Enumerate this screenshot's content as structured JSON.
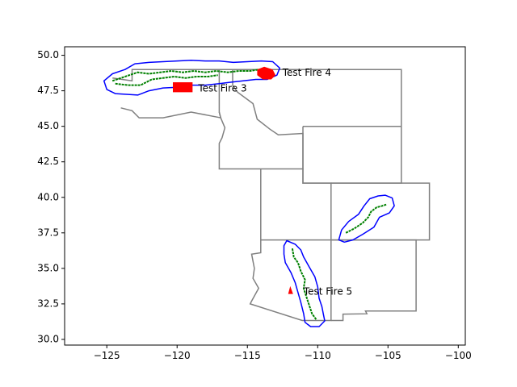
{
  "chart_data": {
    "type": "map",
    "title": "",
    "xlabel": "",
    "ylabel": "",
    "xlim": [
      -128,
      -99.5
    ],
    "ylim": [
      29.6,
      50.6
    ],
    "x_ticks": [
      -125,
      -120,
      -115,
      -110,
      -105,
      -100
    ],
    "y_ticks": [
      30.0,
      32.5,
      35.0,
      37.5,
      40.0,
      42.5,
      45.0,
      47.5,
      50.0
    ],
    "x_tick_labels": [
      "−125",
      "−120",
      "−115",
      "−110",
      "−105",
      "−100"
    ],
    "y_tick_labels": [
      "30.0",
      "32.5",
      "35.0",
      "37.5",
      "40.0",
      "42.5",
      "45.0",
      "47.5",
      "50.0"
    ],
    "grid": false,
    "colors": {
      "state_borders": "#808080",
      "fire_lines": "#008000",
      "buffers": "#0000ff",
      "fire_polygons": "#ff0000"
    },
    "state_borders": [
      [
        [
          -124.6,
          48.4
        ],
        [
          -123.2,
          48.2
        ],
        [
          -123.2,
          49.0
        ],
        [
          -117.0,
          49.0
        ],
        [
          -117.0,
          46.0
        ],
        [
          -116.9,
          45.6
        ],
        [
          -119.0,
          46.0
        ],
        [
          -121.0,
          45.6
        ],
        [
          -122.7,
          45.6
        ],
        [
          -123.2,
          46.1
        ],
        [
          -124.0,
          46.3
        ]
      ],
      [
        [
          -117.0,
          49.0
        ],
        [
          -116.05,
          49.0
        ],
        [
          -116.05,
          47.9
        ],
        [
          -115.7,
          47.4
        ],
        [
          -114.6,
          46.6
        ],
        [
          -114.3,
          45.5
        ],
        [
          -113.4,
          44.8
        ],
        [
          -112.8,
          44.4
        ],
        [
          -111.05,
          44.5
        ],
        [
          -111.05,
          42.0
        ],
        [
          -117.0,
          42.0
        ],
        [
          -117.0,
          43.8
        ],
        [
          -116.8,
          44.2
        ],
        [
          -116.6,
          44.9
        ],
        [
          -116.9,
          45.6
        ],
        [
          -117.0,
          46.0
        ]
      ],
      [
        [
          -116.05,
          49.0
        ],
        [
          -104.05,
          49.0
        ],
        [
          -104.05,
          45.0
        ],
        [
          -111.05,
          45.0
        ]
      ],
      [
        [
          -111.05,
          45.0
        ],
        [
          -111.05,
          41.0
        ],
        [
          -104.05,
          41.0
        ],
        [
          -104.05,
          45.0
        ]
      ],
      [
        [
          -114.05,
          42.0
        ],
        [
          -114.05,
          37.0
        ],
        [
          -109.05,
          37.0
        ],
        [
          -109.05,
          41.0
        ],
        [
          -111.05,
          41.0
        ],
        [
          -111.05,
          42.0
        ]
      ],
      [
        [
          -109.05,
          41.0
        ],
        [
          -102.05,
          41.0
        ],
        [
          -102.05,
          37.0
        ],
        [
          -109.05,
          37.0
        ]
      ],
      [
        [
          -114.05,
          37.0
        ],
        [
          -114.05,
          36.1
        ],
        [
          -114.7,
          36.0
        ],
        [
          -114.5,
          35.0
        ],
        [
          -114.6,
          34.3
        ],
        [
          -114.2,
          33.6
        ],
        [
          -114.7,
          32.7
        ],
        [
          -114.8,
          32.5
        ],
        [
          -111.1,
          31.33
        ],
        [
          -109.05,
          31.33
        ],
        [
          -109.05,
          37.0
        ]
      ],
      [
        [
          -109.05,
          37.0
        ],
        [
          -103.0,
          37.0
        ],
        [
          -103.0,
          32.0
        ],
        [
          -106.6,
          32.0
        ],
        [
          -106.5,
          31.8
        ],
        [
          -108.2,
          31.78
        ],
        [
          -108.2,
          31.33
        ],
        [
          -109.05,
          31.33
        ]
      ]
    ],
    "fire_lines": [
      [
        [
          -124.6,
          48.2
        ],
        [
          -124.0,
          48.4
        ],
        [
          -123.4,
          48.6
        ],
        [
          -122.8,
          48.8
        ],
        [
          -122.0,
          48.7
        ],
        [
          -121.2,
          48.8
        ],
        [
          -120.4,
          48.9
        ],
        [
          -119.6,
          48.8
        ],
        [
          -118.8,
          48.9
        ],
        [
          -118.0,
          48.8
        ],
        [
          -117.2,
          48.9
        ],
        [
          -116.4,
          48.8
        ],
        [
          -115.6,
          48.9
        ],
        [
          -114.8,
          48.9
        ],
        [
          -114.2,
          49.0
        ],
        [
          -113.3,
          49.0
        ]
      ],
      [
        [
          -124.4,
          48.0
        ],
        [
          -123.5,
          47.9
        ],
        [
          -122.6,
          47.9
        ],
        [
          -121.8,
          48.3
        ],
        [
          -121.0,
          48.4
        ],
        [
          -120.2,
          48.5
        ],
        [
          -119.4,
          48.4
        ],
        [
          -118.6,
          48.5
        ],
        [
          -117.8,
          48.5
        ],
        [
          -117.1,
          48.6
        ]
      ],
      [
        [
          -111.8,
          36.4
        ],
        [
          -111.7,
          35.8
        ],
        [
          -111.4,
          35.4
        ],
        [
          -111.2,
          34.8
        ],
        [
          -110.9,
          34.2
        ],
        [
          -111.0,
          33.6
        ],
        [
          -110.8,
          33.0
        ],
        [
          -110.6,
          32.4
        ],
        [
          -110.4,
          31.8
        ],
        [
          -110.1,
          31.4
        ]
      ],
      [
        [
          -108.0,
          37.5
        ],
        [
          -107.4,
          37.8
        ],
        [
          -106.8,
          38.2
        ],
        [
          -106.4,
          38.6
        ],
        [
          -106.2,
          39.0
        ],
        [
          -105.8,
          39.3
        ],
        [
          -105.4,
          39.4
        ],
        [
          -105.1,
          39.5
        ]
      ]
    ],
    "buffers": [
      [
        [
          -125.2,
          48.2
        ],
        [
          -124.6,
          48.7
        ],
        [
          -123.7,
          49.0
        ],
        [
          -123.0,
          49.4
        ],
        [
          -122.0,
          49.5
        ],
        [
          -121.0,
          49.55
        ],
        [
          -120.0,
          49.6
        ],
        [
          -119.0,
          49.65
        ],
        [
          -118.0,
          49.6
        ],
        [
          -117.0,
          49.6
        ],
        [
          -116.0,
          49.5
        ],
        [
          -115.0,
          49.55
        ],
        [
          -114.0,
          49.6
        ],
        [
          -113.2,
          49.55
        ],
        [
          -112.7,
          49.1
        ],
        [
          -112.9,
          48.6
        ],
        [
          -113.6,
          48.3
        ],
        [
          -114.4,
          48.3
        ],
        [
          -115.3,
          48.2
        ],
        [
          -116.2,
          48.1
        ],
        [
          -117.0,
          48.0
        ],
        [
          -118.0,
          47.9
        ],
        [
          -119.0,
          47.9
        ],
        [
          -120.0,
          47.75
        ],
        [
          -121.0,
          47.7
        ],
        [
          -122.0,
          47.5
        ],
        [
          -122.8,
          47.2
        ],
        [
          -123.6,
          47.25
        ],
        [
          -124.4,
          47.3
        ],
        [
          -125.0,
          47.6
        ],
        [
          -125.2,
          48.2
        ]
      ],
      [
        [
          -112.2,
          36.95
        ],
        [
          -111.6,
          36.7
        ],
        [
          -111.2,
          36.3
        ],
        [
          -111.0,
          35.8
        ],
        [
          -110.6,
          35.1
        ],
        [
          -110.2,
          34.4
        ],
        [
          -110.0,
          33.7
        ],
        [
          -109.9,
          32.9
        ],
        [
          -109.7,
          32.3
        ],
        [
          -109.6,
          31.8
        ],
        [
          -109.5,
          31.3
        ],
        [
          -109.9,
          30.9
        ],
        [
          -110.5,
          30.9
        ],
        [
          -110.9,
          31.2
        ],
        [
          -111.0,
          31.8
        ],
        [
          -111.2,
          32.6
        ],
        [
          -111.4,
          33.3
        ],
        [
          -111.6,
          34.0
        ],
        [
          -111.9,
          34.7
        ],
        [
          -112.3,
          35.4
        ],
        [
          -112.4,
          36.0
        ],
        [
          -112.4,
          36.6
        ],
        [
          -112.2,
          36.95
        ]
      ],
      [
        [
          -108.5,
          37.0
        ],
        [
          -108.1,
          36.85
        ],
        [
          -107.5,
          37.0
        ],
        [
          -106.8,
          37.4
        ],
        [
          -106.0,
          37.9
        ],
        [
          -105.6,
          38.6
        ],
        [
          -104.9,
          38.9
        ],
        [
          -104.55,
          39.4
        ],
        [
          -104.7,
          39.95
        ],
        [
          -105.2,
          40.15
        ],
        [
          -105.7,
          40.1
        ],
        [
          -106.3,
          39.9
        ],
        [
          -106.7,
          39.4
        ],
        [
          -107.1,
          38.8
        ],
        [
          -107.8,
          38.3
        ],
        [
          -108.3,
          37.7
        ],
        [
          -108.5,
          37.0
        ]
      ]
    ],
    "fire_polygons": [
      {
        "shape": "rect",
        "x_range": [
          -120.3,
          -118.9
        ],
        "y_range": [
          47.4,
          48.1
        ]
      },
      {
        "shape": "blob",
        "points": [
          [
            -114.3,
            48.6
          ],
          [
            -114.3,
            49.0
          ],
          [
            -113.8,
            49.2
          ],
          [
            -113.2,
            49.0
          ],
          [
            -113.0,
            48.6
          ],
          [
            -113.3,
            48.3
          ],
          [
            -113.9,
            48.3
          ]
        ]
      },
      {
        "shape": "triangle",
        "points": [
          [
            -112.1,
            33.2
          ],
          [
            -111.75,
            33.2
          ],
          [
            -111.95,
            33.75
          ]
        ]
      }
    ],
    "annotations": [
      {
        "text": "Test Fire 3",
        "x": -118.5,
        "y": 47.65
      },
      {
        "text": "Test Fire 4",
        "x": -112.5,
        "y": 48.75
      },
      {
        "text": "Test Fire 5",
        "x": -111.0,
        "y": 33.35
      }
    ]
  }
}
